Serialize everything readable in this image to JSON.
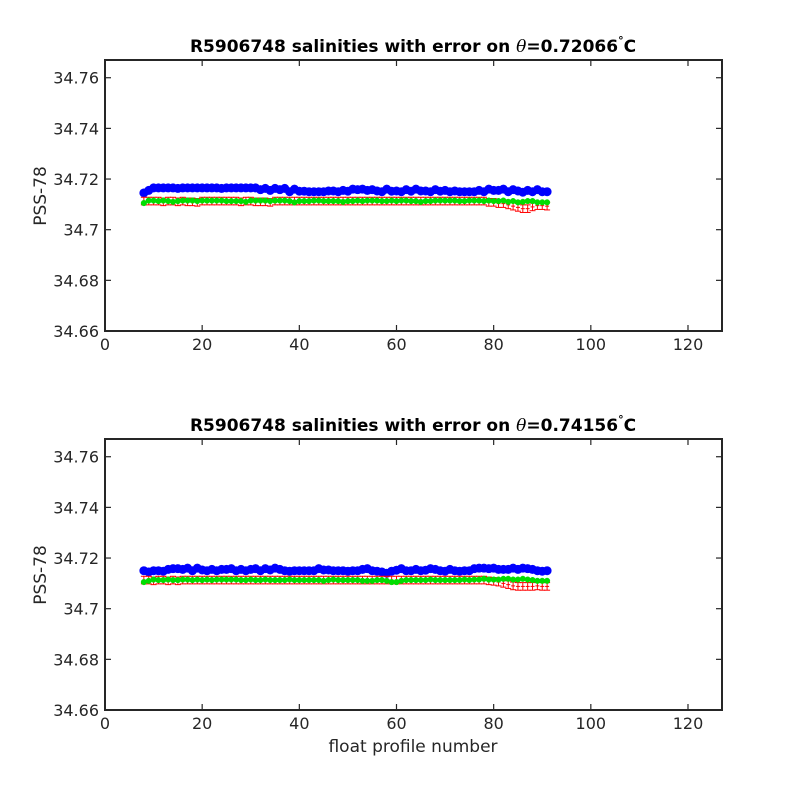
{
  "chart_data": [
    {
      "type": "scatter",
      "title_prefix": "R5906748 salinities with error on ",
      "title_theta": "θ",
      "title_value": "=0.72066",
      "title_degree": "°",
      "title_unit": "C",
      "xlabel": "",
      "ylabel": "PSS-78",
      "xlim": [
        0,
        127
      ],
      "ylim": [
        34.66,
        34.767
      ],
      "xticks": [
        0,
        20,
        40,
        60,
        80,
        100,
        120
      ],
      "xtick_labels": [
        "0",
        "20",
        "40",
        "60",
        "80",
        "100",
        "120"
      ],
      "yticks": [
        34.66,
        34.68,
        34.7,
        34.72,
        34.74,
        34.76
      ],
      "ytick_labels": [
        "34.66",
        "34.68",
        "34.7",
        "34.72",
        "34.74",
        "34.76"
      ],
      "x_start": 8,
      "series": [
        {
          "color": "#0000ff",
          "marker": "circle",
          "values": [
            34.7145,
            34.7155,
            34.7165,
            34.7165,
            34.7165,
            34.7165,
            34.7165,
            34.7163,
            34.7165,
            34.7165,
            34.7165,
            34.7165,
            34.7165,
            34.7165,
            34.7165,
            34.7165,
            34.7163,
            34.7165,
            34.7165,
            34.7165,
            34.7165,
            34.7165,
            34.7165,
            34.7165,
            34.7158,
            34.7163,
            34.7155,
            34.7163,
            34.7158,
            34.7163,
            34.715,
            34.716,
            34.7152,
            34.7152,
            34.715,
            34.715,
            34.715,
            34.715,
            34.7153,
            34.7153,
            34.715,
            34.7155,
            34.7152,
            34.716,
            34.7158,
            34.716,
            34.7155,
            34.7158,
            34.7153,
            34.715,
            34.716,
            34.7152,
            34.7153,
            34.715,
            34.7158,
            34.7152,
            34.716,
            34.7153,
            34.7153,
            34.715,
            34.7158,
            34.7152,
            34.7155,
            34.715,
            34.7153,
            34.715,
            34.715,
            34.715,
            34.715,
            34.7155,
            34.715,
            34.716,
            34.7155,
            34.7155,
            34.716,
            34.715,
            34.7158,
            34.7153,
            34.7148,
            34.7155,
            34.715,
            34.7158,
            34.715,
            34.715
          ]
        },
        {
          "color": "#00dd00",
          "marker": "circle-small",
          "values": [
            34.7105,
            34.7115,
            34.7115,
            34.7113,
            34.7115,
            34.7113,
            34.711,
            34.7113,
            34.7115,
            34.7115,
            34.7115,
            34.7113,
            34.7115,
            34.7115,
            34.7115,
            34.7115,
            34.7115,
            34.7113,
            34.7113,
            34.7113,
            34.7113,
            34.711,
            34.7115,
            34.7115,
            34.7115,
            34.7115,
            34.7113,
            34.7115,
            34.7115,
            34.7115,
            34.7113,
            34.7108,
            34.7113,
            34.7113,
            34.7113,
            34.7115,
            34.7115,
            34.7113,
            34.7113,
            34.7113,
            34.7113,
            34.711,
            34.7113,
            34.7113,
            34.7115,
            34.7113,
            34.7115,
            34.7115,
            34.7115,
            34.7113,
            34.7113,
            34.7115,
            34.7113,
            34.7115,
            34.7115,
            34.7113,
            34.7113,
            34.711,
            34.7113,
            34.7113,
            34.7115,
            34.7115,
            34.7115,
            34.7115,
            34.7115,
            34.7113,
            34.7113,
            34.7115,
            34.7115,
            34.7115,
            34.7113,
            34.7115,
            34.7113,
            34.7113,
            34.7115,
            34.711,
            34.7113,
            34.7108,
            34.711,
            34.7113,
            34.7113,
            34.7108,
            34.7108,
            34.7108
          ]
        },
        {
          "color": "#ff0000",
          "marker": "errorbar",
          "values": [
            34.7113,
            34.7113,
            34.7113,
            34.7113,
            34.711,
            34.7113,
            34.7113,
            34.711,
            34.7113,
            34.711,
            34.711,
            34.7108,
            34.7113,
            34.7113,
            34.7113,
            34.7113,
            34.7113,
            34.7113,
            34.7113,
            34.7113,
            34.711,
            34.7113,
            34.7113,
            34.711,
            34.711,
            34.711,
            34.7108,
            34.7113,
            34.7113,
            34.7113,
            34.7113,
            34.7113,
            34.7113,
            34.7113,
            34.7113,
            34.7113,
            34.7113,
            34.7113,
            34.7113,
            34.7113,
            34.7113,
            34.7113,
            34.7113,
            34.7113,
            34.7113,
            34.7113,
            34.7113,
            34.7113,
            34.7113,
            34.7113,
            34.7113,
            34.7113,
            34.7113,
            34.7113,
            34.7113,
            34.7113,
            34.7113,
            34.7113,
            34.7113,
            34.7113,
            34.7113,
            34.7113,
            34.7113,
            34.7113,
            34.7113,
            34.7113,
            34.7113,
            34.7113,
            34.7113,
            34.7113,
            34.7113,
            34.7108,
            34.7108,
            34.7103,
            34.7103,
            34.7098,
            34.7093,
            34.7088,
            34.7083,
            34.7083,
            34.709,
            34.7095,
            34.7095,
            34.7093
          ],
          "error": 0.0015
        }
      ]
    },
    {
      "type": "scatter",
      "title_prefix": "R5906748 salinities with error on ",
      "title_theta": "θ",
      "title_value": "=0.74156",
      "title_degree": "°",
      "title_unit": "C",
      "xlabel": "float profile number",
      "ylabel": "PSS-78",
      "xlim": [
        0,
        127
      ],
      "ylim": [
        34.66,
        34.767
      ],
      "xticks": [
        0,
        20,
        40,
        60,
        80,
        100,
        120
      ],
      "xtick_labels": [
        "0",
        "20",
        "40",
        "60",
        "80",
        "100",
        "120"
      ],
      "yticks": [
        34.66,
        34.68,
        34.7,
        34.72,
        34.74,
        34.76
      ],
      "ytick_labels": [
        "34.66",
        "34.68",
        "34.7",
        "34.72",
        "34.74",
        "34.76"
      ],
      "x_start": 8,
      "series": [
        {
          "color": "#0000ff",
          "marker": "circle",
          "values": [
            34.715,
            34.7145,
            34.715,
            34.715,
            34.7148,
            34.7155,
            34.7158,
            34.7158,
            34.7155,
            34.716,
            34.715,
            34.716,
            34.7153,
            34.715,
            34.7155,
            34.715,
            34.7155,
            34.7155,
            34.7158,
            34.715,
            34.7155,
            34.715,
            34.7155,
            34.7158,
            34.715,
            34.7158,
            34.7153,
            34.716,
            34.7155,
            34.715,
            34.7148,
            34.715,
            34.715,
            34.715,
            34.715,
            34.715,
            34.7158,
            34.7153,
            34.7153,
            34.715,
            34.715,
            34.715,
            34.7148,
            34.715,
            34.715,
            34.7155,
            34.7158,
            34.715,
            34.7148,
            34.7145,
            34.714,
            34.7148,
            34.7152,
            34.7158,
            34.715,
            34.715,
            34.7155,
            34.715,
            34.7152,
            34.7158,
            34.7155,
            34.715,
            34.7148,
            34.7155,
            34.715,
            34.7148,
            34.715,
            34.715,
            34.7158,
            34.716,
            34.716,
            34.7158,
            34.716,
            34.7155,
            34.7155,
            34.7155,
            34.716,
            34.7155,
            34.716,
            34.7158,
            34.7155,
            34.715,
            34.7148,
            34.715
          ]
        },
        {
          "color": "#00dd00",
          "marker": "circle-small",
          "values": [
            34.7105,
            34.711,
            34.7115,
            34.7113,
            34.7113,
            34.7115,
            34.7113,
            34.7113,
            34.7115,
            34.7115,
            34.7113,
            34.7115,
            34.7113,
            34.7115,
            34.7113,
            34.7115,
            34.7115,
            34.7115,
            34.7115,
            34.7115,
            34.7113,
            34.7113,
            34.7115,
            34.7113,
            34.7113,
            34.7115,
            34.7113,
            34.7113,
            34.7113,
            34.7113,
            34.7115,
            34.7113,
            34.7113,
            34.7113,
            34.7113,
            34.7113,
            34.7113,
            34.711,
            34.7113,
            34.7115,
            34.7113,
            34.7113,
            34.7113,
            34.7113,
            34.7113,
            34.711,
            34.711,
            34.711,
            34.7113,
            34.7113,
            34.711,
            34.7105,
            34.7105,
            34.711,
            34.7113,
            34.7113,
            34.7113,
            34.7113,
            34.7113,
            34.7115,
            34.7113,
            34.7113,
            34.7113,
            34.7113,
            34.7113,
            34.7113,
            34.7115,
            34.7113,
            34.7115,
            34.7115,
            34.7118,
            34.7115,
            34.7115,
            34.7115,
            34.7118,
            34.7118,
            34.7115,
            34.7115,
            34.7118,
            34.7115,
            34.7113,
            34.711,
            34.711,
            34.711
          ]
        },
        {
          "color": "#ff0000",
          "marker": "errorbar",
          "values": [
            34.7113,
            34.7113,
            34.711,
            34.7113,
            34.7113,
            34.711,
            34.7113,
            34.711,
            34.7113,
            34.7113,
            34.7113,
            34.7113,
            34.7113,
            34.7113,
            34.7113,
            34.7113,
            34.7113,
            34.7113,
            34.7113,
            34.7113,
            34.7113,
            34.7113,
            34.7113,
            34.7113,
            34.7113,
            34.7113,
            34.7113,
            34.7113,
            34.7113,
            34.7113,
            34.7113,
            34.7113,
            34.7113,
            34.7113,
            34.7113,
            34.7113,
            34.7113,
            34.7113,
            34.7113,
            34.7113,
            34.7113,
            34.7113,
            34.7113,
            34.7113,
            34.7113,
            34.7113,
            34.7113,
            34.7113,
            34.7113,
            34.7113,
            34.7113,
            34.7113,
            34.7113,
            34.7113,
            34.7113,
            34.7113,
            34.7113,
            34.7113,
            34.7113,
            34.7113,
            34.7113,
            34.7113,
            34.7113,
            34.7113,
            34.7113,
            34.7113,
            34.7113,
            34.7113,
            34.7113,
            34.7113,
            34.7113,
            34.711,
            34.7108,
            34.7105,
            34.71,
            34.7095,
            34.709,
            34.7088,
            34.7088,
            34.7088,
            34.7088,
            34.709,
            34.7088,
            34.7088
          ],
          "error": 0.0015
        }
      ]
    }
  ]
}
